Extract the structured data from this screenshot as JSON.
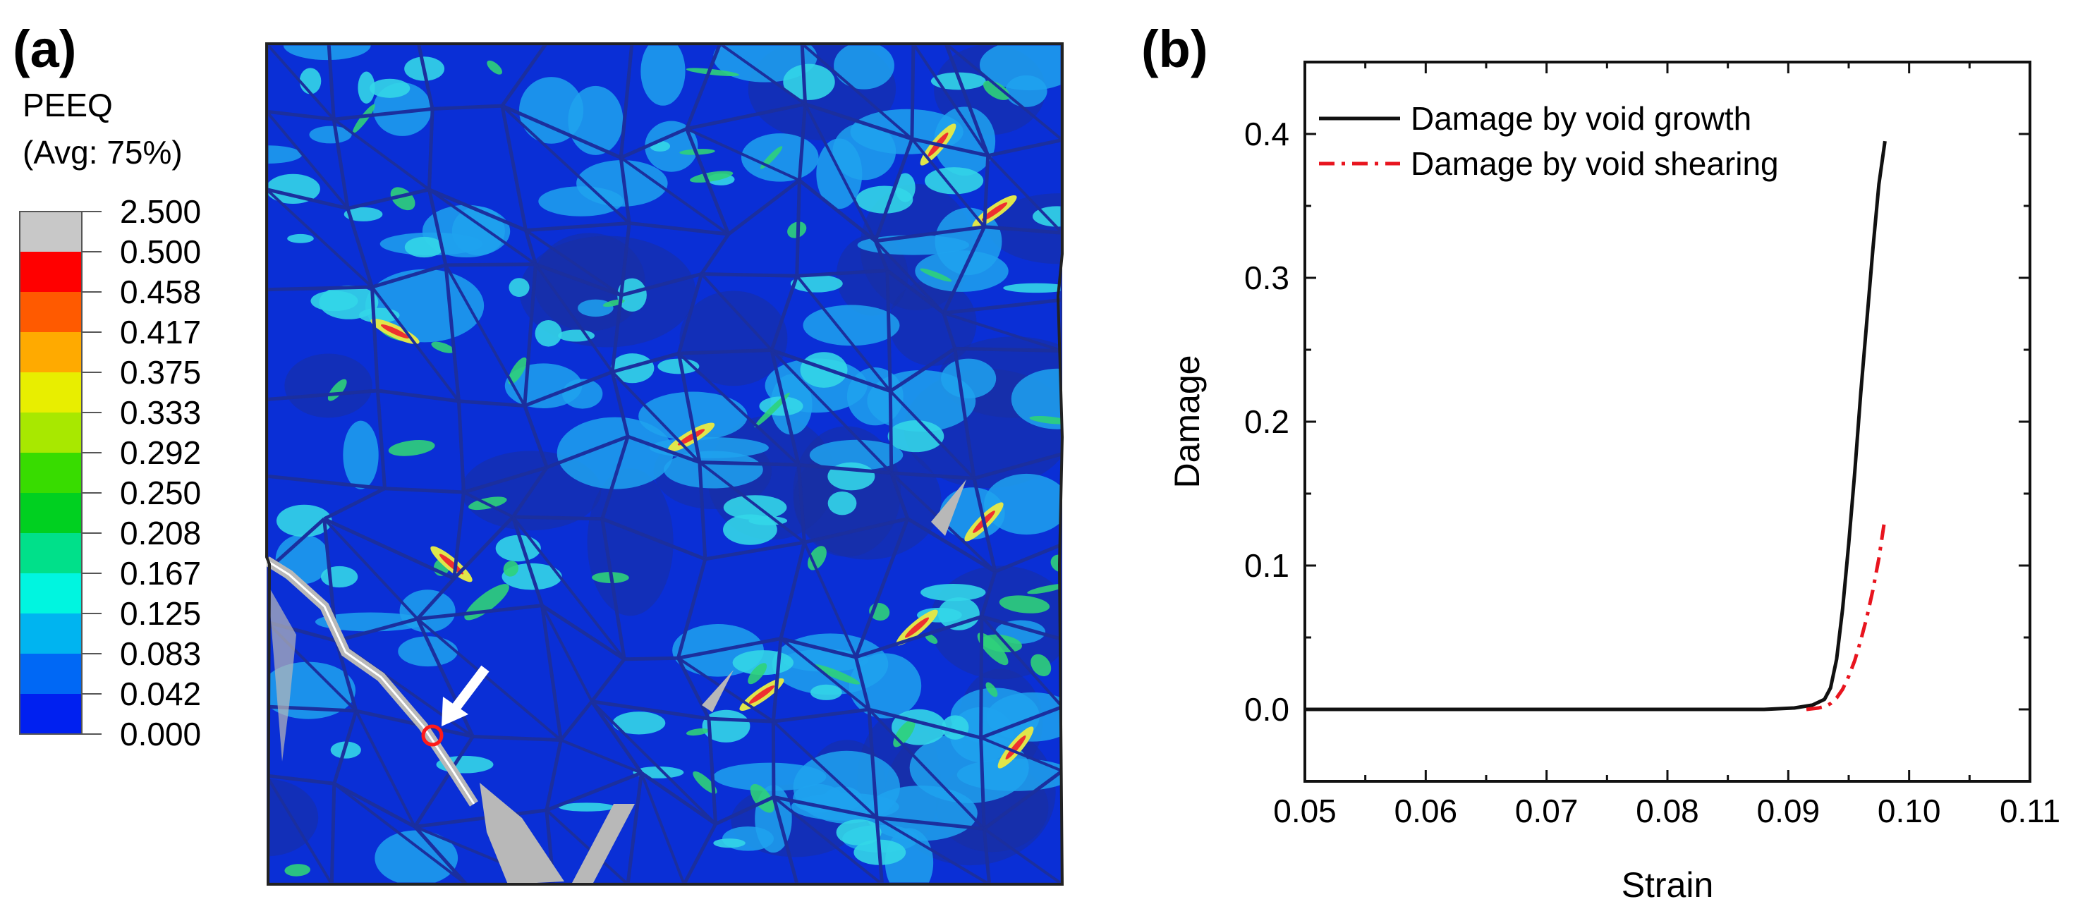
{
  "panel_a": {
    "label": "(a)",
    "colorbar_title": "PEEQ",
    "colorbar_subtitle": "(Avg: 75%)",
    "colorbar_levels": [
      "2.500",
      "0.500",
      "0.458",
      "0.417",
      "0.375",
      "0.333",
      "0.292",
      "0.250",
      "0.208",
      "0.167",
      "0.125",
      "0.083",
      "0.042",
      "0.000"
    ],
    "colorbar_colors": [
      "#c8c8c8",
      "#ff0000",
      "#ff5a00",
      "#ffaa00",
      "#e8ee00",
      "#a8e800",
      "#38dc00",
      "#00d020",
      "#00e08a",
      "#00f5e0",
      "#00b4f0",
      "#0068f5",
      "#0020f0"
    ],
    "map_colors": {
      "base": "#0a2fd6",
      "deep": "#1a2fa0",
      "boundary": "#1b2f9e",
      "light_blue": "#1ea2ef",
      "cyan": "#33d6e8",
      "green": "#2fd27a",
      "yellow": "#e0e64a",
      "red": "#ee3030",
      "crack": "#b8b8b8"
    },
    "marker_color": "#ff1a1a",
    "arrow_color": "#ffffff"
  },
  "chart_data": {
    "type": "line",
    "panel_label": "(b)",
    "title": "",
    "xlabel": "Strain",
    "ylabel": "Damage",
    "xlim": [
      0.05,
      0.11
    ],
    "ylim": [
      -0.05,
      0.45
    ],
    "xticks": [
      0.05,
      0.06,
      0.07,
      0.08,
      0.09,
      0.1,
      0.11
    ],
    "xtick_labels": [
      "0.05",
      "0.06",
      "0.07",
      "0.08",
      "0.09",
      "0.10",
      "0.11"
    ],
    "yticks": [
      0.0,
      0.1,
      0.2,
      0.3,
      0.4
    ],
    "ytick_labels": [
      "0.0",
      "0.1",
      "0.2",
      "0.3",
      "0.4"
    ],
    "legend_position": "top-left",
    "series": [
      {
        "name": "Damage by void growth",
        "color": "#111111",
        "style": "solid",
        "x": [
          0.05,
          0.08,
          0.088,
          0.0905,
          0.092,
          0.093,
          0.0935,
          0.094,
          0.0945,
          0.095,
          0.0955,
          0.096,
          0.0965,
          0.097,
          0.0975,
          0.098
        ],
        "y": [
          0.0,
          0.0,
          0.0,
          0.001,
          0.003,
          0.007,
          0.015,
          0.035,
          0.07,
          0.115,
          0.165,
          0.22,
          0.27,
          0.32,
          0.365,
          0.395
        ]
      },
      {
        "name": "Damage by void shearing",
        "color": "#e8141e",
        "style": "dashdot",
        "x": [
          0.0915,
          0.0925,
          0.093,
          0.0935,
          0.094,
          0.0945,
          0.095,
          0.0955,
          0.096,
          0.0965,
          0.097,
          0.0975,
          0.098
        ],
        "y": [
          0.0,
          0.001,
          0.002,
          0.004,
          0.008,
          0.014,
          0.023,
          0.034,
          0.048,
          0.064,
          0.083,
          0.105,
          0.133
        ]
      }
    ]
  }
}
